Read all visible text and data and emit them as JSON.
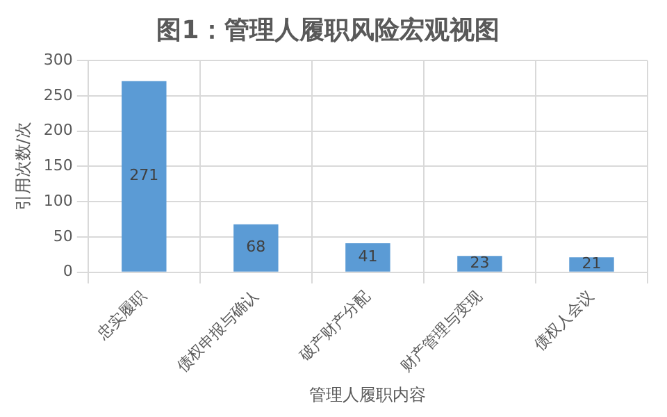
{
  "chart_data": {
    "type": "bar",
    "title": "图1：管理人履职风险宏观视图",
    "xlabel": "管理人履职内容",
    "ylabel": "引用次数/次",
    "categories": [
      "忠实履职",
      "债权申报与确认",
      "破产财产分配",
      "财产管理与变现",
      "债权人会议"
    ],
    "values": [
      271,
      68,
      41,
      23,
      21
    ],
    "color": "#5b9bd5",
    "ylim": [
      0,
      300
    ],
    "yticks": [
      0,
      50,
      100,
      150,
      200,
      250,
      300
    ],
    "grid": true,
    "data_labels": true,
    "legend": false
  }
}
